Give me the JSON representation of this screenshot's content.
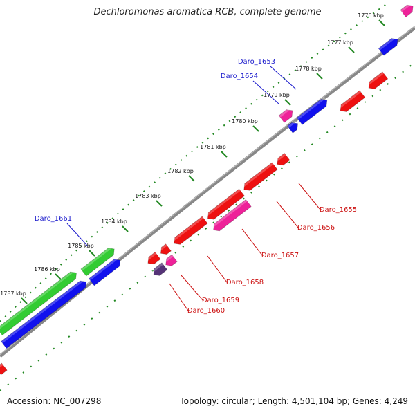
{
  "title": "Dechloromonas aromatica RCB, complete genome",
  "footer": {
    "accession": "Accession: NC_007298",
    "summary": "Topology: circular; Length: 4,501,104 bp; Genes: 4,249"
  },
  "colors": {
    "label_blue": "#1a1acc",
    "label_red": "#cc1111",
    "gene_red": "#ee1111",
    "gene_blue": "#1111ee",
    "gene_green": "#33cc33",
    "gene_pink": "#ee2299",
    "gene_purple": "#553377",
    "backbone": "#888888",
    "tick": "#228822"
  },
  "scale_labels": [
    "1776 kbp",
    "1777 kbp",
    "1778 kbp",
    "1779 kbp",
    "1780 kbp",
    "1781 kbp",
    "1782 kbp",
    "1783 kbp",
    "1784 kbp",
    "1785 kbp",
    "1786 kbp",
    "1787 kbp"
  ],
  "gene_labels": {
    "forward": [
      "Daro_1653",
      "Daro_1654",
      "Daro_1661"
    ],
    "reverse": [
      "Daro_1655",
      "Daro_1656",
      "Daro_1657",
      "Daro_1658",
      "Daro_1659",
      "Daro_1660"
    ]
  }
}
